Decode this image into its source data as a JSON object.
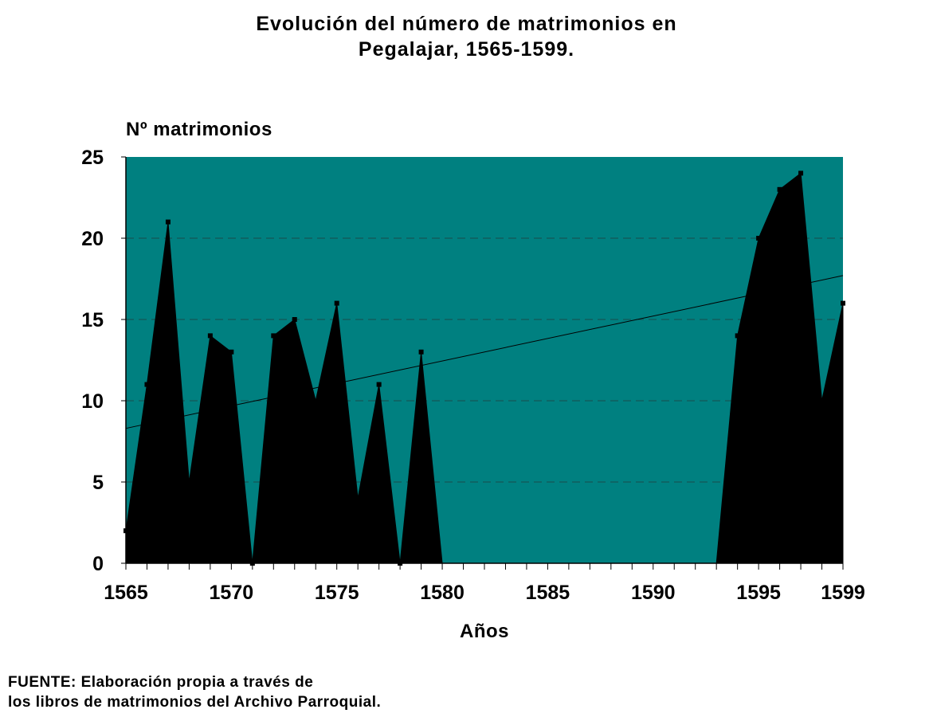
{
  "chart_data": {
    "type": "area",
    "title_lines": [
      "Evolución del número de matrimonios en",
      "Pegalajar, 1565-1599."
    ],
    "ylabel": "Nº matrimonios",
    "xlabel": "Años",
    "x_tick_labels": [
      "1565",
      "1570",
      "1575",
      "1580",
      "1585",
      "1590",
      "1595",
      "1599"
    ],
    "y_tick_labels": [
      "0",
      "5",
      "10",
      "15",
      "20",
      "25"
    ],
    "xlim": [
      1565,
      1599
    ],
    "ylim": [
      0,
      25
    ],
    "grid": true,
    "plot_background": "#008080",
    "area_color": "#000000",
    "series": [
      {
        "points": [
          [
            1565,
            2
          ],
          [
            1566,
            11
          ],
          [
            1567,
            21
          ],
          [
            1568,
            5
          ],
          [
            1569,
            14
          ],
          [
            1570,
            13
          ],
          [
            1571,
            0
          ],
          [
            1572,
            14
          ],
          [
            1573,
            15
          ],
          [
            1574,
            10
          ],
          [
            1575,
            16
          ],
          [
            1576,
            4
          ],
          [
            1577,
            11
          ],
          [
            1578,
            0
          ],
          [
            1579,
            13
          ],
          [
            1580,
            0
          ],
          [
            1593,
            0
          ],
          [
            1594,
            14
          ],
          [
            1595,
            20
          ],
          [
            1596,
            23
          ],
          [
            1597,
            24
          ],
          [
            1598,
            10
          ],
          [
            1599,
            16
          ]
        ],
        "markers": [
          [
            1565,
            2
          ],
          [
            1566,
            11
          ],
          [
            1567,
            21
          ],
          [
            1569,
            14
          ],
          [
            1570,
            13
          ],
          [
            1571,
            0
          ],
          [
            1572,
            14
          ],
          [
            1573,
            15
          ],
          [
            1575,
            16
          ],
          [
            1577,
            11
          ],
          [
            1578,
            0
          ],
          [
            1579,
            13
          ],
          [
            1594,
            14
          ],
          [
            1595,
            20
          ],
          [
            1596,
            23
          ],
          [
            1597,
            24
          ],
          [
            1599,
            16
          ]
        ]
      }
    ],
    "trendline": {
      "type": "linear",
      "start": [
        1565,
        8.3
      ],
      "end": [
        1599,
        17.7
      ]
    }
  },
  "source_note_lines": [
    "FUENTE: Elaboración propia a través de",
    "los libros de matrimonios del Archivo Parroquial."
  ]
}
